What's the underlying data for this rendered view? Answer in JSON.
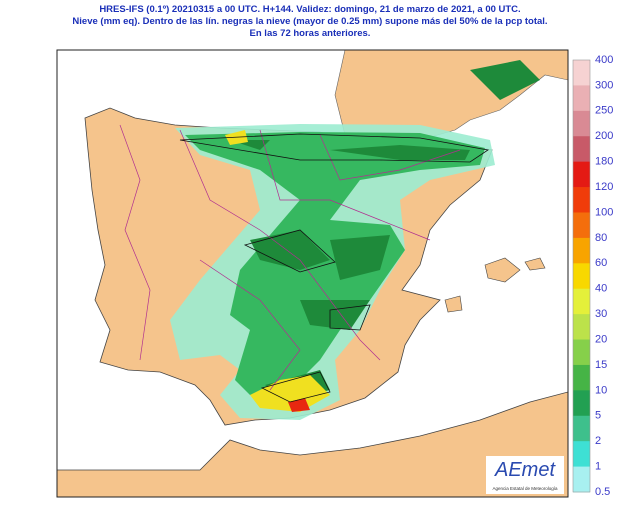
{
  "header": {
    "lines": [
      "HRES-IFS (0.1º) 20210315 a 00 UTC.  H+144. Validez: domingo, 21 de marzo de 2021,  a  00 UTC.",
      "Nieve (mm eq). Dentro de las lín. negras la nieve (mayor de 0.25 mm) supone más del 50% de la pcp total.",
      "En las 72 horas anteriores."
    ]
  },
  "legend": {
    "levels": [
      400,
      300,
      250,
      200,
      180,
      120,
      100,
      80,
      60,
      40,
      30,
      20,
      15,
      10,
      5,
      2,
      1,
      0.5
    ],
    "colors": [
      "#f6d2d2",
      "#eab0b4",
      "#d98a94",
      "#c85a68",
      "#e41a14",
      "#f03c0a",
      "#f46e0c",
      "#f8a400",
      "#f8d800",
      "#e4f03a",
      "#bce24a",
      "#86d04a",
      "#46b446",
      "#22a052",
      "#3ec08c",
      "#3ee0d4",
      "#a8f0f0"
    ]
  },
  "logo": {
    "name": "AEmet",
    "subtitle": "Agencia Estatal de Meteorología"
  }
}
